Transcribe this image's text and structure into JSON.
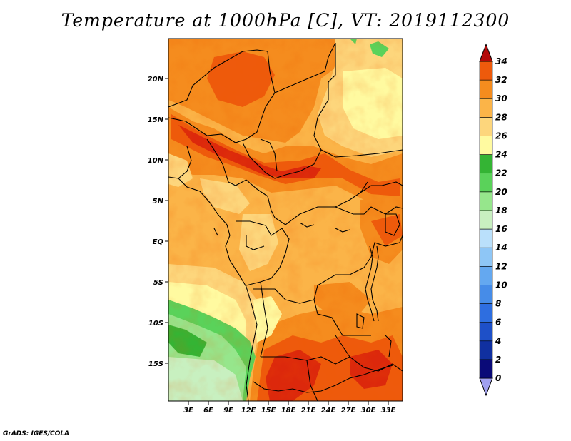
{
  "title": "Temperature at 1000hPa [C], VT: 2019112300",
  "credit": "GrADS: IGES/COLA",
  "map": {
    "lat_labels": [
      "20N",
      "15N",
      "10N",
      "5N",
      "EQ",
      "5S",
      "10S",
      "15S"
    ],
    "lon_labels": [
      "3E",
      "6E",
      "9E",
      "12E",
      "15E",
      "18E",
      "21E",
      "24E",
      "27E",
      "30E",
      "33E"
    ]
  },
  "colorbar": {
    "labels": [
      "0",
      "2",
      "4",
      "6",
      "8",
      "10",
      "12",
      "14",
      "16",
      "18",
      "20",
      "22",
      "24",
      "26",
      "28",
      "30",
      "32",
      "34"
    ],
    "colors": [
      "#a0a0f0",
      "#0a0a78",
      "#1030a0",
      "#1e50c8",
      "#2e6ee0",
      "#468ce8",
      "#64a8f0",
      "#8ec6f6",
      "#bae0fb",
      "#c8f0c0",
      "#96e68c",
      "#5ad25a",
      "#34b434",
      "#fffaa0",
      "#fdd67c",
      "#fbb448",
      "#f58c1e",
      "#ee5a0c",
      "#dc280c",
      "#b40a0a"
    ]
  }
}
